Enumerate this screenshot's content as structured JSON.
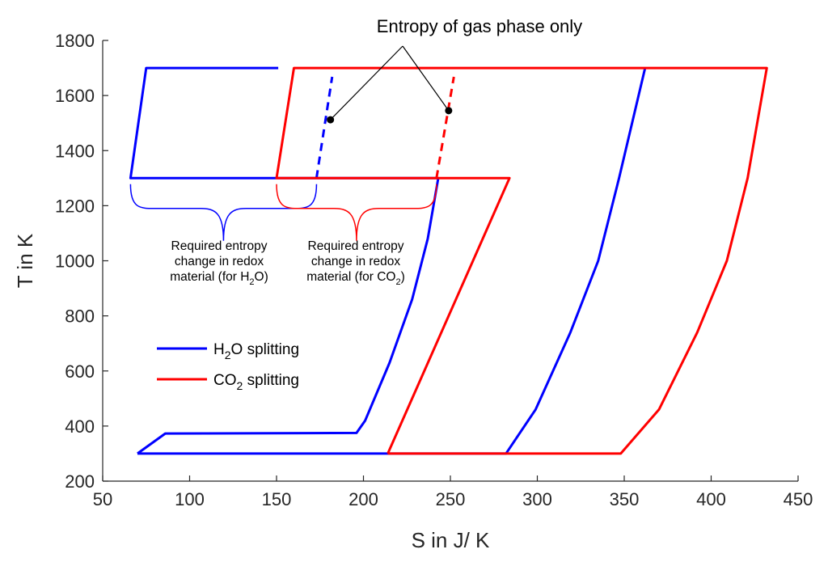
{
  "chart_data": {
    "type": "line",
    "title": "",
    "xlabel": "S in J/ K",
    "ylabel": "T in K",
    "xlim": [
      50,
      450
    ],
    "ylim": [
      200,
      1800
    ],
    "xticks": [
      50,
      100,
      150,
      200,
      250,
      300,
      350,
      400,
      450
    ],
    "yticks": [
      200,
      400,
      600,
      800,
      1000,
      1200,
      1400,
      1600,
      1800
    ],
    "grid": false,
    "legend_position": "lower-left",
    "legend": [
      {
        "label_main": "H",
        "label_sub": "2",
        "label_rest": "O splitting",
        "color": "#0000ff"
      },
      {
        "label_main": "CO",
        "label_sub": "2",
        "label_rest": " splitting",
        "color": "#ff0000"
      }
    ],
    "series": [
      {
        "name": "H2O splitting",
        "color": "#0000ff",
        "style": "solid",
        "segments": [
          [
            [
              70,
              300
            ],
            [
              86,
              373
            ],
            [
              196,
              375
            ],
            [
              201,
              420
            ],
            [
              215,
              630
            ],
            [
              228,
              860
            ],
            [
              237,
              1080
            ],
            [
              243,
              1300
            ],
            [
              66,
              1300
            ],
            [
              75,
              1700
            ],
            [
              151,
              1700
            ]
          ],
          [
            [
              70,
              300
            ],
            [
              282,
              300
            ],
            [
              299,
              460
            ],
            [
              319,
              740
            ],
            [
              335,
              1000
            ],
            [
              347,
              1300
            ],
            [
              362,
              1700
            ]
          ]
        ]
      },
      {
        "name": "H2O gas phase entropy",
        "color": "#0000ff",
        "style": "dashed",
        "segments": [
          [
            [
              173,
              1300
            ],
            [
              182,
              1668
            ]
          ]
        ]
      },
      {
        "name": "CO2 splitting",
        "color": "#ff0000",
        "style": "solid",
        "segments": [
          [
            [
              214,
              300
            ],
            [
              348,
              300
            ],
            [
              370,
              460
            ],
            [
              392,
              740
            ],
            [
              409,
              1000
            ],
            [
              421,
              1300
            ],
            [
              432,
              1700
            ],
            [
              160,
              1700
            ],
            [
              150,
              1300
            ],
            [
              284,
              1300
            ],
            [
              214,
              300
            ]
          ]
        ]
      },
      {
        "name": "CO2 gas phase entropy",
        "color": "#ff0000",
        "style": "dashed",
        "segments": [
          [
            [
              242,
              1300
            ],
            [
              252,
              1668
            ]
          ]
        ]
      }
    ],
    "annotations": {
      "gas_phase_label": "Entropy of gas phase only",
      "gas_phase_points": [
        [
          181,
          1512
        ],
        [
          249,
          1545
        ]
      ],
      "brace_h2o_lines": [
        "Required entropy",
        "change in redox",
        "material (for H",
        "2",
        "O)"
      ],
      "brace_co2_lines": [
        "Required entropy",
        "change in redox",
        "material (for CO",
        "2",
        ")"
      ],
      "brace_h2o_range": [
        66,
        173
      ],
      "brace_co2_range": [
        150,
        242
      ]
    }
  }
}
